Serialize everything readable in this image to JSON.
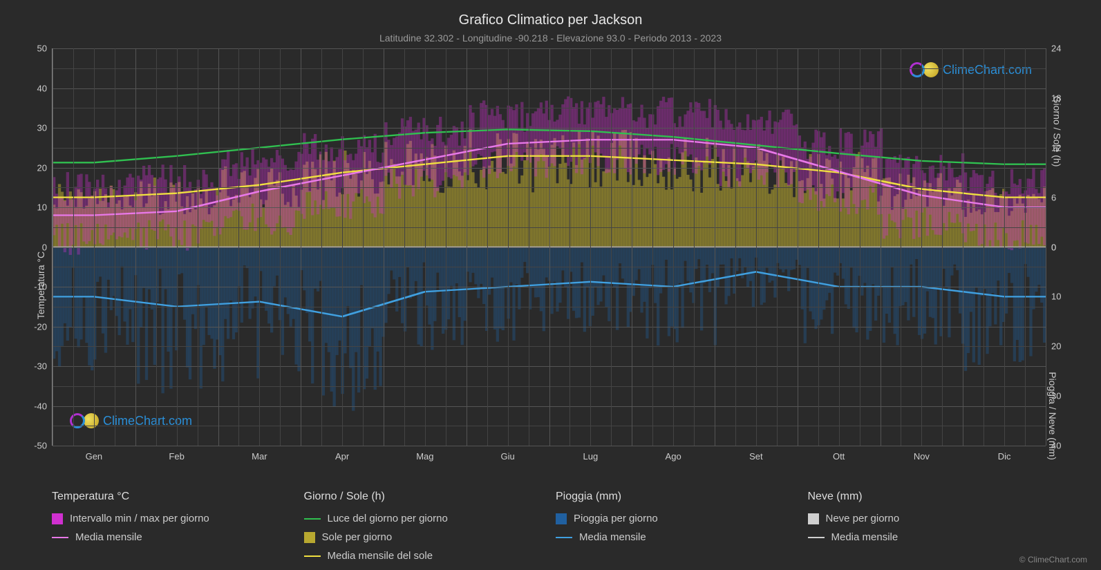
{
  "title": "Grafico Climatico per Jackson",
  "subtitle": "Latitudine 32.302 - Longitudine -90.218 - Elevazione 93.0 - Periodo 2013 - 2023",
  "brand": "ClimeChart.com",
  "copyright": "© ClimeChart.com",
  "colors": {
    "background": "#2a2a2a",
    "grid_major": "#555555",
    "grid_minor": "#444444",
    "text": "#cccccc",
    "title_text": "#e8e8e8",
    "brand_text": "#2a8fd8",
    "temp_range_fill": "#d030d0",
    "temp_mean_line": "#e878e8",
    "daylight_line": "#30c050",
    "sun_fill": "#b8a830",
    "sun_mean_line": "#f0e040",
    "rain_fill": "#2060a0",
    "rain_mean_line": "#40a0e0",
    "snow_fill": "#d0d0d0",
    "snow_mean_line": "#d0d0d0"
  },
  "axes": {
    "left_label": "Temperatura °C",
    "right_top_label": "Giorno / Sole (h)",
    "right_bot_label": "Pioggia / Neve (mm)",
    "y_left_min": -50,
    "y_left_max": 50,
    "y_left_ticks": [
      50,
      40,
      30,
      20,
      10,
      0,
      -10,
      -20,
      -30,
      -40,
      -50
    ],
    "y_right_top_ticks": [
      24,
      18,
      12,
      6,
      0
    ],
    "y_right_bot_ticks": [
      0,
      10,
      20,
      30,
      40
    ],
    "x_months": [
      "Gen",
      "Feb",
      "Mar",
      "Apr",
      "Mag",
      "Giu",
      "Lug",
      "Ago",
      "Set",
      "Ott",
      "Nov",
      "Dic"
    ]
  },
  "series": {
    "temp_mean_monthly": [
      8,
      9,
      14,
      18,
      22,
      26,
      27,
      27,
      25,
      19,
      13,
      10
    ],
    "temp_min_monthly": [
      2,
      3,
      7,
      11,
      16,
      21,
      22,
      22,
      19,
      12,
      6,
      3
    ],
    "temp_max_monthly": [
      15,
      17,
      21,
      25,
      29,
      33,
      34,
      34,
      31,
      26,
      20,
      16
    ],
    "daylight_monthly_h": [
      10.2,
      11.0,
      12.0,
      13.0,
      13.8,
      14.2,
      14.0,
      13.3,
      12.3,
      11.3,
      10.4,
      10.0
    ],
    "sun_mean_monthly_h": [
      6.0,
      6.5,
      7.5,
      9.0,
      10.0,
      11.0,
      11.0,
      10.5,
      10.0,
      9.0,
      7.0,
      6.0
    ],
    "rain_mean_monthly_mm": [
      10,
      12,
      11,
      14,
      9,
      8,
      7,
      8,
      5,
      8,
      8,
      10
    ]
  },
  "legend": {
    "temp_header": "Temperatura °C",
    "temp_range": "Intervallo min / max per giorno",
    "temp_mean": "Media mensile",
    "day_header": "Giorno / Sole (h)",
    "daylight": "Luce del giorno per giorno",
    "sun": "Sole per giorno",
    "sun_mean": "Media mensile del sole",
    "rain_header": "Pioggia (mm)",
    "rain": "Pioggia per giorno",
    "rain_mean": "Media mensile",
    "snow_header": "Neve (mm)",
    "snow": "Neve per giorno",
    "snow_mean": "Media mensile"
  }
}
